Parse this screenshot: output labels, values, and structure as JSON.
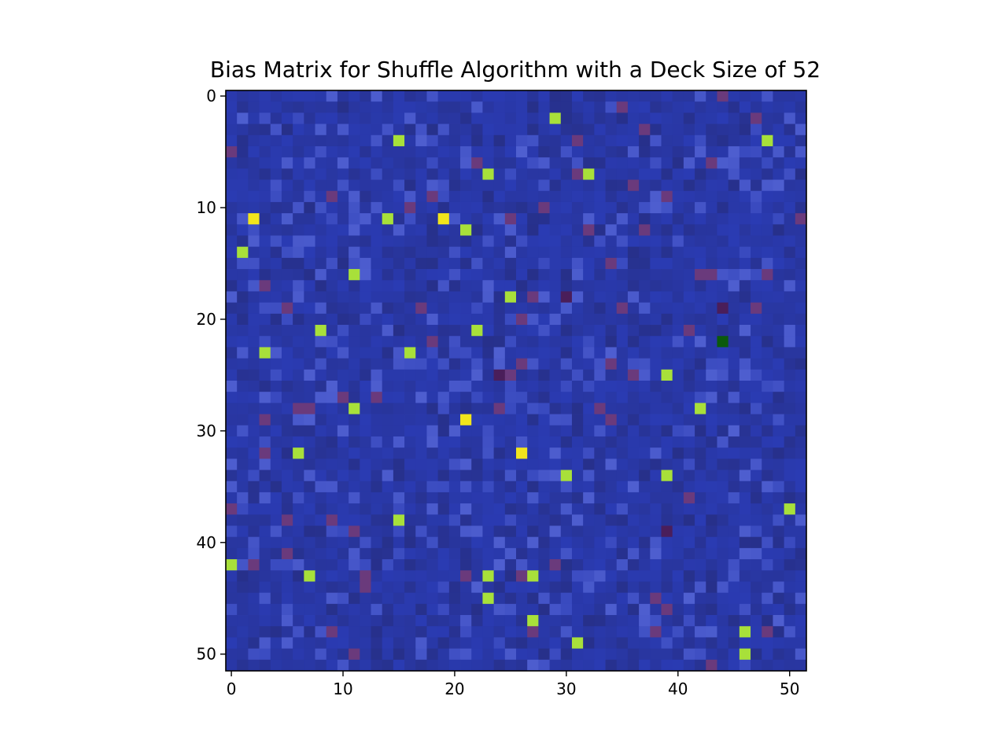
{
  "chart_data": {
    "type": "heatmap",
    "title": "Bias Matrix for Shuffle Algorithm with a Deck Size of 52",
    "xlabel": "",
    "ylabel": "",
    "deck_size": 52,
    "x_ticks": [
      0,
      10,
      20,
      30,
      40,
      50
    ],
    "y_ticks": [
      0,
      10,
      20,
      30,
      40,
      50
    ],
    "y_axis_direction": "down",
    "colors": {
      "base_dark": "#27308a",
      "base_mid": "#2a3bb3",
      "base_light": "#4f5fd0",
      "purple": "#6a3a7c",
      "dark_purple": "#4a1e5a",
      "lime": "#a8e03a",
      "yellow": "#f2e51c",
      "dark_green": "#0b5a0b"
    },
    "background_level": "low (blue noise)",
    "high_cells_lime": [
      [
        29,
        2
      ],
      [
        15,
        4
      ],
      [
        48,
        4
      ],
      [
        23,
        7
      ],
      [
        32,
        7
      ],
      [
        14,
        11
      ],
      [
        21,
        12
      ],
      [
        1,
        14
      ],
      [
        11,
        16
      ],
      [
        25,
        18
      ],
      [
        8,
        21
      ],
      [
        22,
        21
      ],
      [
        3,
        23
      ],
      [
        16,
        23
      ],
      [
        39,
        25
      ],
      [
        11,
        28
      ],
      [
        42,
        28
      ],
      [
        6,
        32
      ],
      [
        30,
        34
      ],
      [
        39,
        34
      ],
      [
        50,
        37
      ],
      [
        15,
        38
      ],
      [
        0,
        42
      ],
      [
        7,
        43
      ],
      [
        23,
        43
      ],
      [
        27,
        43
      ],
      [
        23,
        45
      ],
      [
        27,
        47
      ],
      [
        46,
        48
      ],
      [
        31,
        49
      ],
      [
        46,
        50
      ]
    ],
    "high_cells_yellow": [
      [
        2,
        11
      ],
      [
        19,
        11
      ],
      [
        21,
        29
      ],
      [
        26,
        32
      ]
    ],
    "low_cells_dark_green": [
      [
        44,
        22
      ]
    ],
    "elevated_cells_purple": [
      [
        44,
        0
      ],
      [
        35,
        1
      ],
      [
        47,
        2
      ],
      [
        37,
        3
      ],
      [
        31,
        4
      ],
      [
        0,
        5
      ],
      [
        22,
        6
      ],
      [
        43,
        6
      ],
      [
        31,
        7
      ],
      [
        36,
        8
      ],
      [
        18,
        9
      ],
      [
        39,
        9
      ],
      [
        9,
        9
      ],
      [
        16,
        10
      ],
      [
        25,
        11
      ],
      [
        28,
        10
      ],
      [
        51,
        11
      ],
      [
        32,
        12
      ],
      [
        37,
        12
      ],
      [
        34,
        15
      ],
      [
        42,
        16
      ],
      [
        43,
        16
      ],
      [
        48,
        16
      ],
      [
        3,
        17
      ],
      [
        27,
        18
      ],
      [
        30,
        18
      ],
      [
        5,
        19
      ],
      [
        17,
        19
      ],
      [
        35,
        19
      ],
      [
        44,
        19
      ],
      [
        47,
        19
      ],
      [
        26,
        20
      ],
      [
        41,
        21
      ],
      [
        18,
        22
      ],
      [
        24,
        25
      ],
      [
        25,
        25
      ],
      [
        26,
        24
      ],
      [
        34,
        24
      ],
      [
        36,
        25
      ],
      [
        10,
        27
      ],
      [
        13,
        27
      ],
      [
        6,
        28
      ],
      [
        7,
        28
      ],
      [
        24,
        28
      ],
      [
        33,
        28
      ],
      [
        3,
        29
      ],
      [
        34,
        29
      ],
      [
        3,
        32
      ],
      [
        41,
        36
      ],
      [
        0,
        37
      ],
      [
        5,
        38
      ],
      [
        9,
        38
      ],
      [
        11,
        39
      ],
      [
        39,
        39
      ],
      [
        5,
        41
      ],
      [
        2,
        42
      ],
      [
        29,
        42
      ],
      [
        12,
        43
      ],
      [
        21,
        43
      ],
      [
        26,
        43
      ],
      [
        12,
        44
      ],
      [
        38,
        45
      ],
      [
        39,
        46
      ],
      [
        27,
        48
      ],
      [
        9,
        48
      ],
      [
        38,
        48
      ],
      [
        48,
        48
      ],
      [
        11,
        50
      ],
      [
        43,
        51
      ]
    ],
    "dark_purple_cells": [
      [
        24,
        25
      ],
      [
        30,
        18
      ],
      [
        44,
        19
      ],
      [
        39,
        39
      ]
    ]
  }
}
